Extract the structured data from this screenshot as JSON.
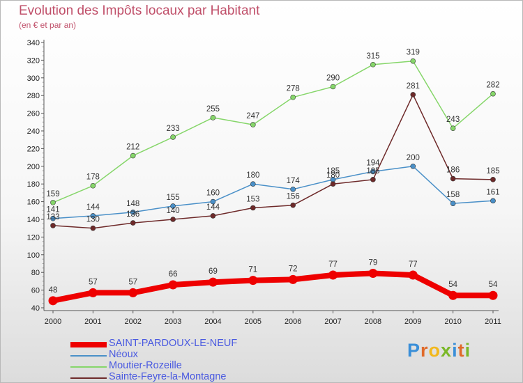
{
  "header": {
    "title": "Evolution des Impôts locaux par Habitant",
    "subtitle": "(en € et par an)"
  },
  "brand": {
    "letters": [
      {
        "ch": "P",
        "color": "#3a8fd8"
      },
      {
        "ch": "r",
        "color": "#e06a2a"
      },
      {
        "ch": "o",
        "color": "#f2b81c"
      },
      {
        "ch": "x",
        "color": "#7ab828"
      },
      {
        "ch": "i",
        "color": "#3a8fd8"
      },
      {
        "ch": "t",
        "color": "#e06a2a"
      },
      {
        "ch": "i",
        "color": "#7ab828"
      }
    ]
  },
  "chart_data": {
    "type": "line",
    "title": "Evolution des Impôts locaux par Habitant",
    "subtitle": "(en € et par an)",
    "xlabel": "",
    "ylabel": "",
    "x": [
      "2000",
      "2001",
      "2002",
      "2003",
      "2004",
      "2005",
      "2006",
      "2007",
      "2008",
      "2009",
      "2010",
      "2011"
    ],
    "ylim": [
      40,
      340
    ],
    "yticks": [
      40,
      60,
      80,
      100,
      120,
      140,
      160,
      180,
      200,
      220,
      240,
      260,
      280,
      300,
      320,
      340
    ],
    "grid": false,
    "legend_position": "bottom-left",
    "series": [
      {
        "name": "SAINT-PARDOUX-LE-NEUF",
        "color": "#ee0000",
        "emphasis": true,
        "values": [
          48,
          57,
          57,
          66,
          69,
          71,
          72,
          77,
          79,
          77,
          54,
          54
        ]
      },
      {
        "name": "Néoux",
        "color": "#4a90c8",
        "emphasis": false,
        "values": [
          141,
          144,
          148,
          155,
          160,
          180,
          174,
          185,
          194,
          200,
          158,
          161
        ]
      },
      {
        "name": "Moutier-Rozeille",
        "color": "#86d66a",
        "emphasis": false,
        "values": [
          159,
          178,
          212,
          233,
          255,
          247,
          278,
          290,
          315,
          319,
          243,
          282
        ]
      },
      {
        "name": "Sainte-Feyre-la-Montagne",
        "color": "#6e2a2a",
        "emphasis": false,
        "values": [
          133,
          130,
          136,
          140,
          144,
          153,
          156,
          180,
          185,
          281,
          186,
          185
        ]
      }
    ]
  }
}
